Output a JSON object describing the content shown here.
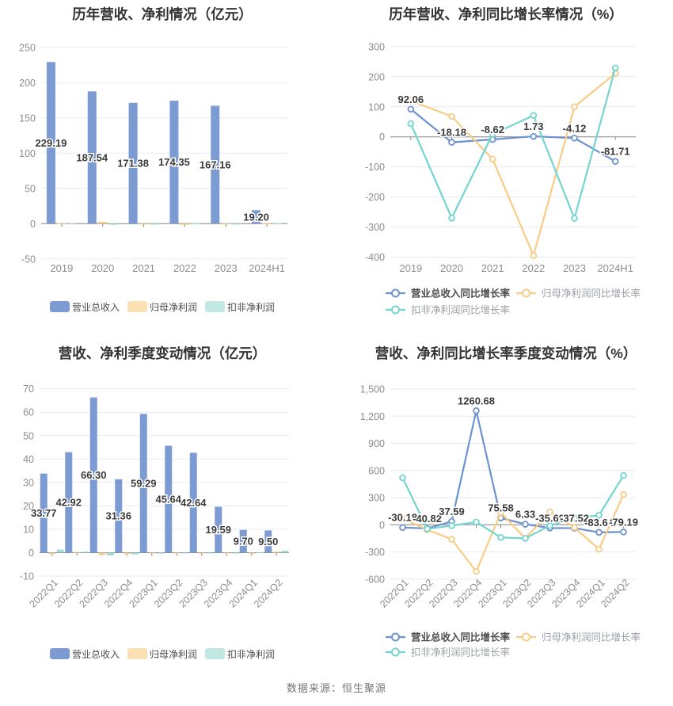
{
  "page": {
    "background": "#ffffff"
  },
  "footer": {
    "text": "数据来源：恒生聚源"
  },
  "colors": {
    "bar_blue": "#7C9BD3",
    "bar_orange": "#F7CC86",
    "bar_cyan": "#A0DBD6",
    "legend_orange": "#FBE0B2",
    "legend_cyan": "#C2E8E3",
    "line_blue": "#6D93CF",
    "line_orange": "#F9CC85",
    "line_cyan": "#73D4D0",
    "grid": "#E4EAF4",
    "axis": "#848484",
    "tick_text": "#8C8C8C",
    "label_text": "#3A3A3A",
    "title_text": "#333333",
    "legend_text_dark": "#4D4D4D",
    "legend_text_gray": "#9AA0A6"
  },
  "chart_data": [
    {
      "name": "annual-revenue-profit-chart",
      "type": "bar",
      "title": "历年营收、净利情况（亿元）",
      "categories": [
        "2019",
        "2020",
        "2021",
        "2022",
        "2023",
        "2024H1"
      ],
      "yticks": [
        250,
        200,
        150,
        100,
        50,
        0,
        -50
      ],
      "legend_position": "bottom",
      "series": [
        {
          "name": "营业总收入",
          "color": "#7C9BD3",
          "values": [
            229.19,
            187.54,
            171.38,
            174.35,
            167.16,
            19.2
          ],
          "labels": [
            "229.19",
            "187.54",
            "171.38",
            "174.35",
            "167.16",
            "19.20"
          ]
        },
        {
          "name": "归母净利润",
          "color": "#F7CC86",
          "legend_color": "#FBE0B2",
          "values": [
            0.9,
            2.5,
            -1.0,
            -1.5,
            0.2,
            0.3
          ]
        },
        {
          "name": "扣非净利润",
          "color": "#A0DBD6",
          "legend_color": "#C2E8E3",
          "values": [
            0.2,
            -1.5,
            -1.2,
            0.3,
            -1.0,
            0.8
          ]
        }
      ]
    },
    {
      "name": "annual-growth-rate-chart",
      "type": "line",
      "title": "历年营收、净利同比增长率情况（%）",
      "categories": [
        "2019",
        "2020",
        "2021",
        "2022",
        "2023",
        "2024H1"
      ],
      "yticks": [
        300,
        200,
        100,
        0,
        -100,
        -200,
        -300,
        -400
      ],
      "legend_position": "bottom",
      "series": [
        {
          "name": "营业总收入同比增长率",
          "color": "#6D93CF",
          "values": [
            92.06,
            -18.18,
            -8.62,
            1.73,
            -4.12,
            -81.71
          ],
          "labels": [
            "92.06",
            "-18.18",
            "-8.62",
            "1.73",
            "-4.12",
            "-81.71"
          ]
        },
        {
          "name": "归母净利润同比增长率",
          "color": "#F9CC85",
          "values": [
            120,
            68,
            -74,
            -395,
            100,
            211
          ]
        },
        {
          "name": "扣非净利润同比增长率",
          "color": "#73D4D0",
          "values": [
            44,
            -270,
            9,
            71,
            -271,
            229
          ]
        }
      ]
    },
    {
      "name": "quarterly-revenue-profit-chart",
      "type": "bar",
      "title": "营收、净利季度变动情况（亿元）",
      "categories": [
        "2022Q1",
        "2022Q2",
        "2022Q3",
        "2022Q4",
        "2023Q1",
        "2023Q2",
        "2023Q3",
        "2023Q4",
        "2024Q1",
        "2024Q2"
      ],
      "yticks": [
        70,
        60,
        50,
        40,
        30,
        20,
        10,
        0,
        -10
      ],
      "legend_position": "bottom",
      "series": [
        {
          "name": "营业总收入",
          "color": "#7C9BD3",
          "values": [
            33.77,
            42.92,
            66.3,
            31.36,
            59.29,
            45.64,
            42.64,
            19.59,
            9.7,
            9.5
          ],
          "labels": [
            "33.77",
            "42.92",
            "66.30",
            "31.36",
            "59.29",
            "45.64",
            "42.64",
            "19.59",
            "9.70",
            "9.50"
          ]
        },
        {
          "name": "归母净利润",
          "color": "#F7CC86",
          "legend_color": "#FBE0B2",
          "values": [
            -0.5,
            0.3,
            -0.9,
            -0.6,
            -0.2,
            -0.2,
            -0.1,
            -0.1,
            -0.4,
            0.4
          ]
        },
        {
          "name": "扣非净利润",
          "color": "#A0DBD6",
          "legend_color": "#C2E8E3",
          "values": [
            1.3,
            0.4,
            -1.2,
            -0.7,
            -0.4,
            -0.3,
            -0.3,
            -0.1,
            0.1,
            0.8
          ]
        }
      ]
    },
    {
      "name": "quarterly-growth-rate-chart",
      "type": "line",
      "title": "营收、净利同比增长率季度变动情况（%）",
      "categories": [
        "2022Q1",
        "2022Q2",
        "2022Q3",
        "2022Q4",
        "2023Q1",
        "2023Q2",
        "2023Q3",
        "2023Q4",
        "2024Q1",
        "2024Q2"
      ],
      "yticks": [
        1500,
        1200,
        900,
        600,
        300,
        0,
        -300,
        -600
      ],
      "ytick_labels": [
        "1,500",
        "1,200",
        "900",
        "600",
        "300",
        "0",
        "-300",
        "-600"
      ],
      "legend_position": "bottom",
      "series": [
        {
          "name": "营业总收入同比增长率",
          "color": "#6D93CF",
          "values": [
            -30.18,
            -40.82,
            37.59,
            1260.68,
            75.58,
            6.33,
            -35.69,
            -37.52,
            -83.64,
            -79.19
          ],
          "labels": [
            "-30.18",
            "-40.82",
            "37.59",
            "1260.68",
            "75.58",
            "6.33",
            "-35.69",
            "-37.52",
            "-83.64",
            "-79.19"
          ]
        },
        {
          "name": "归母净利润同比增长率",
          "color": "#F9CC85",
          "values": [
            70,
            -55,
            -160,
            -515,
            135,
            -150,
            140,
            -30,
            -270,
            335
          ]
        },
        {
          "name": "扣非净利润同比增长率",
          "color": "#73D4D0",
          "values": [
            520,
            -45,
            -10,
            30,
            -140,
            -150,
            -10,
            75,
            105,
            545
          ]
        }
      ]
    }
  ]
}
